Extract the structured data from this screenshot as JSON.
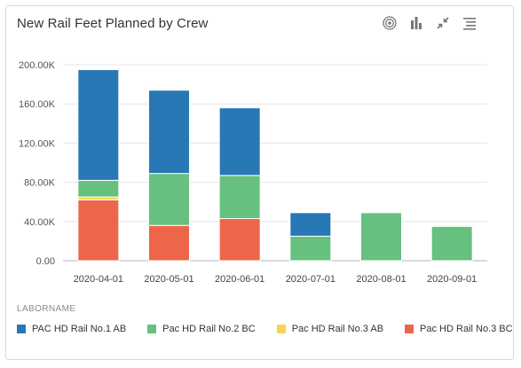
{
  "header": {
    "title": "New Rail Feet Planned by Crew"
  },
  "toolbar": {
    "icons": [
      "target-icon",
      "bar-chart-icon",
      "collapse-icon",
      "list-icon"
    ]
  },
  "legend": {
    "title": "LABORNAME"
  },
  "chart_data": {
    "type": "bar",
    "stacked": true,
    "title": "New Rail Feet Planned by Crew",
    "categories": [
      "2020-04-01",
      "2020-05-01",
      "2020-06-01",
      "2020-07-01",
      "2020-08-01",
      "2020-09-01"
    ],
    "series": [
      {
        "name": "Pac HD Rail No.3 BC",
        "color": "#ee6649",
        "values": [
          62000,
          36000,
          43000,
          0,
          0,
          0
        ]
      },
      {
        "name": "Pac HD Rail No.3 AB",
        "color": "#f7d552",
        "values": [
          3000,
          0,
          0,
          0,
          0,
          0
        ]
      },
      {
        "name": "Pac HD Rail No.2 BC",
        "color": "#66c07e",
        "values": [
          17000,
          53000,
          44000,
          25000,
          49000,
          35000
        ]
      },
      {
        "name": "PAC HD Rail No.1 AB",
        "color": "#2878b5",
        "values": [
          113000,
          85000,
          69000,
          24000,
          0,
          0
        ]
      }
    ],
    "legend_order": [
      "PAC HD Rail No.1 AB",
      "Pac HD Rail No.2 BC",
      "Pac HD Rail No.3 AB",
      "Pac HD Rail No.3 BC"
    ],
    "yticks": [
      "0.00",
      "40.00K",
      "80.00K",
      "120.00K",
      "160.00K",
      "200.00K"
    ],
    "ylim": [
      0,
      200000
    ],
    "grid": true,
    "legend_position": "bottom"
  }
}
